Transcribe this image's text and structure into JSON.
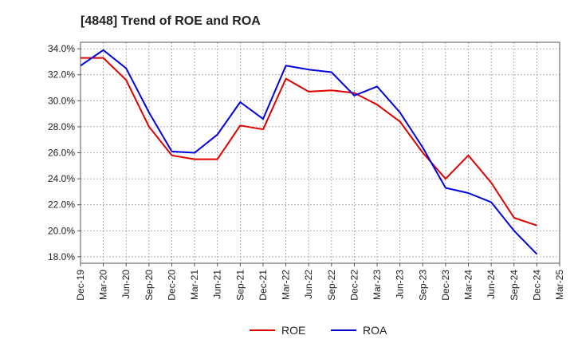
{
  "chart_data": {
    "type": "line",
    "title": "[4848]  Trend of ROE and ROA",
    "xlabel": "",
    "ylabel": "",
    "x": [
      "Dec-19",
      "Mar-20",
      "Jun-20",
      "Sep-20",
      "Dec-20",
      "Mar-21",
      "Jun-21",
      "Sep-21",
      "Dec-21",
      "Mar-22",
      "Jun-22",
      "Sep-22",
      "Dec-22",
      "Mar-23",
      "Jun-23",
      "Sep-23",
      "Dec-23",
      "Mar-24",
      "Jun-24",
      "Sep-24",
      "Dec-24",
      "Mar-25"
    ],
    "y_ticks": [
      "18.0%",
      "20.0%",
      "22.0%",
      "24.0%",
      "26.0%",
      "28.0%",
      "30.0%",
      "32.0%",
      "34.0%"
    ],
    "ylim": [
      17.5,
      34.5
    ],
    "grid": true,
    "legend_position": "bottom",
    "series": [
      {
        "name": "ROE",
        "color": "#e00000",
        "values": [
          33.3,
          33.3,
          31.6,
          28.0,
          25.8,
          25.5,
          25.5,
          28.1,
          27.8,
          31.7,
          30.7,
          30.8,
          30.6,
          29.7,
          28.4,
          26.0,
          24.0,
          25.8,
          23.7,
          21.0,
          20.4,
          null
        ]
      },
      {
        "name": "ROA",
        "color": "#0000e0",
        "values": [
          32.7,
          33.9,
          32.5,
          29.1,
          26.1,
          26.0,
          27.4,
          29.9,
          28.6,
          32.7,
          32.4,
          32.2,
          30.4,
          31.1,
          29.1,
          26.4,
          23.3,
          22.9,
          22.2,
          20.0,
          18.2,
          null
        ]
      }
    ]
  }
}
